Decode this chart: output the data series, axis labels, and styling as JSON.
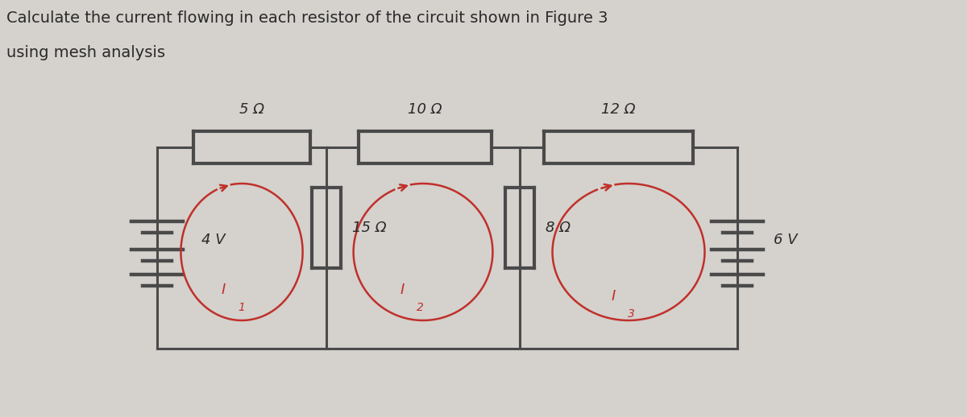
{
  "title_line1": "Calculate the current flowing in each resistor of the circuit shown in Figure 3",
  "title_line2": "using mesh analysis",
  "bg_color": "#d5d1cd",
  "circuit_color": "#4a4a4a",
  "resistor_labels": [
    "5 Ω",
    "10 Ω",
    "12 Ω"
  ],
  "vertical_resistor_labels": [
    "15 Ω",
    "8 Ω"
  ],
  "voltage_labels": [
    "4 V",
    "6 V"
  ],
  "mesh_color": "#c0302a",
  "text_color": "#2a2a2a",
  "title_fontsize": 14,
  "label_fontsize": 12
}
